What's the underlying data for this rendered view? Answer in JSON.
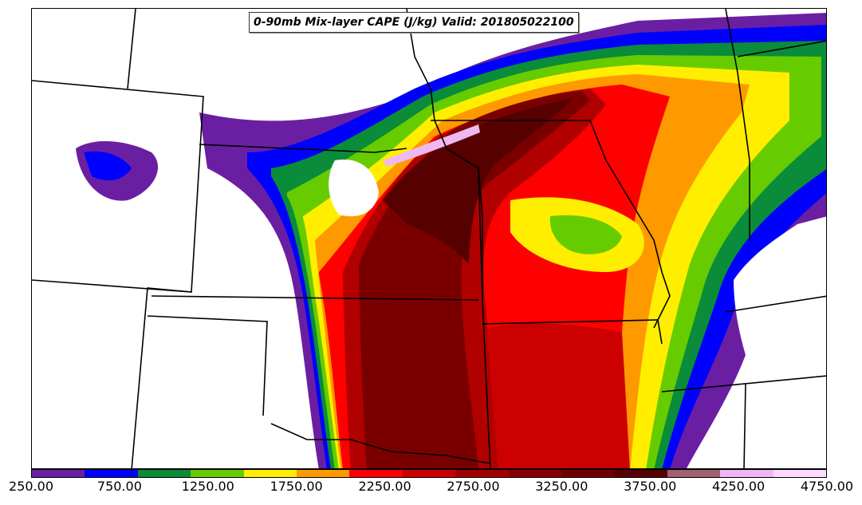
{
  "title": "0-90mb Mix-layer CAPE (J/kg) Valid: 201805022100",
  "colorbar": {
    "colors": [
      "#6a1fa3",
      "#0000ff",
      "#0a8c3a",
      "#66cc00",
      "#ffee00",
      "#ff9900",
      "#ff0000",
      "#cc0000",
      "#a30000",
      "#8a0000",
      "#6e0000",
      "#560000",
      "#a06070",
      "#f0b8f0",
      "#ffd9ff"
    ],
    "tick_labels": [
      "250.00",
      "750.00",
      "1250.00",
      "1750.00",
      "2250.00",
      "2750.00",
      "3250.00",
      "3750.00",
      "4250.00",
      "4750.00"
    ]
  },
  "map": {
    "field_colors": {
      "purple": "#6a1fa3",
      "blue": "#0000ff",
      "green": "#0a8c3a",
      "lightgreen": "#66cc00",
      "yellow": "#ffee00",
      "orange": "#ff9900",
      "red": "#ff0000",
      "darkred": "#b00000",
      "maroon": "#7a0000",
      "darkmaroon": "#560000",
      "pink": "#f0b8f0"
    },
    "border_color": "#000000"
  }
}
